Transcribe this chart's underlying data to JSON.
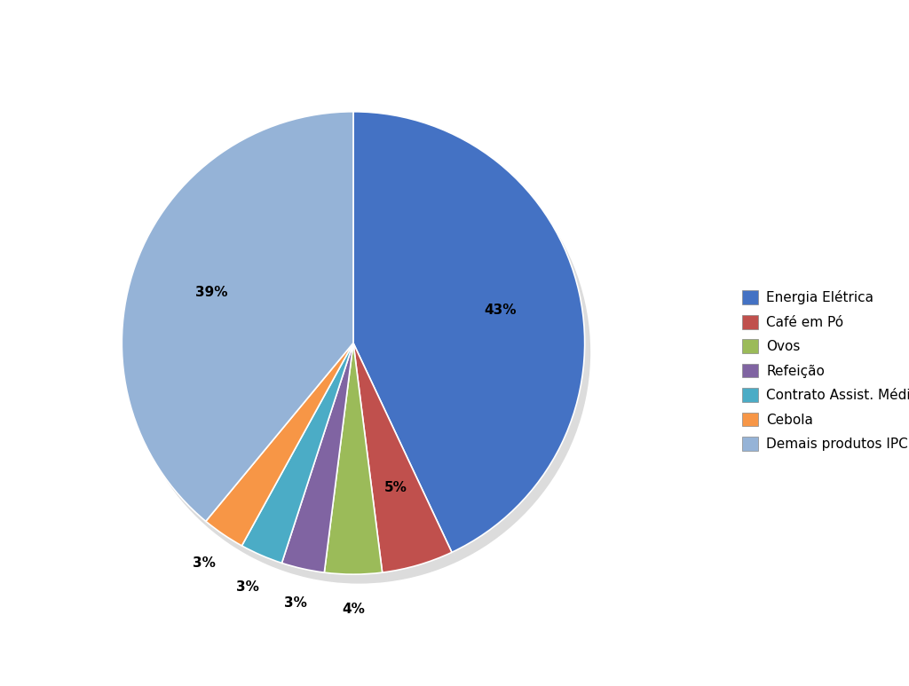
{
  "labels": [
    "Energia Elétrica",
    "Café em Pó",
    "Ovos",
    "Refeição",
    "Contrato Assist. Médica",
    "Cebola",
    "Demais produtos IPC"
  ],
  "values": [
    43,
    5,
    4,
    3,
    3,
    3,
    39
  ],
  "colors": [
    "#4472C4",
    "#C0504D",
    "#9BBB59",
    "#8064A2",
    "#4BACC6",
    "#F79646",
    "#95B3D7"
  ],
  "pct_labels": [
    "43%",
    "5%",
    "4%",
    "3%",
    "3%",
    "3%",
    "39%"
  ],
  "background_color": "#FFFFFF",
  "legend_labels": [
    "Energia Elétrica",
    "Café em Pó",
    "Ovos",
    "Refeição",
    "Contrato Assist. Médica",
    "Cebola",
    "Demais produtos IPC"
  ],
  "figsize": [
    10.24,
    7.73
  ],
  "dpi": 100
}
